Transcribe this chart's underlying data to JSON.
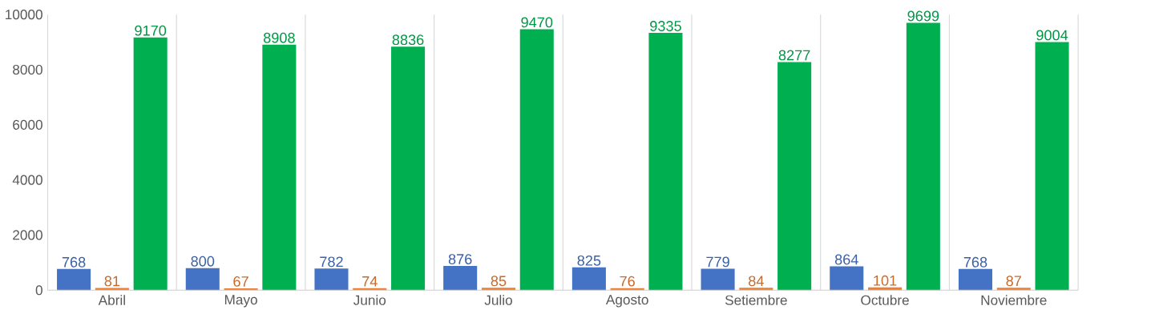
{
  "chart_data": {
    "type": "bar",
    "categories": [
      "Abril",
      "Mayo",
      "Junio",
      "Julio",
      "Agosto",
      "Setiembre",
      "Octubre",
      "Noviembre"
    ],
    "series": [
      {
        "color": "#4472c4",
        "values": [
          768,
          800,
          782,
          876,
          825,
          779,
          864,
          768
        ]
      },
      {
        "color": "#ed7d31",
        "values": [
          81,
          67,
          74,
          85,
          76,
          84,
          101,
          87
        ]
      },
      {
        "color": "#00b050",
        "values": [
          9170,
          8908,
          8836,
          9470,
          9335,
          8277,
          9699,
          9004
        ]
      }
    ],
    "ylim": [
      0,
      10000
    ],
    "yticks": [
      0,
      2000,
      4000,
      6000,
      8000,
      10000
    ],
    "grid": "x",
    "data_labels": true
  }
}
